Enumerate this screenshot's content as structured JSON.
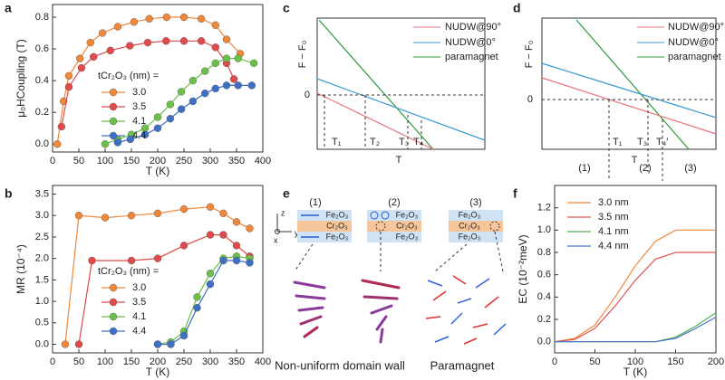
{
  "chart_data": [
    {
      "type": "line",
      "label": "a",
      "xlabel": "T (K)",
      "ylabel": "μ₀HCoupling (T)",
      "legend_title": "tCr₂O₃ (nm) =",
      "markers": true,
      "xlim": [
        0,
        400
      ],
      "xticks": [
        0,
        50,
        100,
        150,
        200,
        250,
        300,
        350,
        400
      ],
      "ylim": [
        -0.05,
        0.88
      ],
      "yticks": [
        {
          "value": 0,
          "label": "0.0"
        },
        {
          "value": 0.2,
          "label": "0.2"
        },
        {
          "value": 0.4,
          "label": "0.4"
        },
        {
          "value": 0.6,
          "label": "0.6"
        },
        {
          "value": 0.8,
          "label": "0.8"
        }
      ],
      "series": [
        {
          "name": "3.0",
          "color": "#f0883a",
          "x": [
            9,
            21,
            31,
            52,
            72,
            95,
            124,
            155,
            184,
            217,
            250,
            283,
            310,
            331,
            357
          ],
          "values": [
            0,
            0.27,
            0.43,
            0.54,
            0.64,
            0.7,
            0.74,
            0.77,
            0.79,
            0.8,
            0.8,
            0.79,
            0.75,
            0.66,
            0.57
          ]
        },
        {
          "name": "3.5",
          "color": "#e04a4a",
          "x": [
            17,
            31,
            55,
            78,
            110,
            147,
            181,
            216,
            250,
            283,
            310,
            331,
            345
          ],
          "values": [
            0.11,
            0.36,
            0.48,
            0.55,
            0.59,
            0.62,
            0.64,
            0.65,
            0.65,
            0.65,
            0.61,
            0.51,
            0.41
          ]
        },
        {
          "name": "4.1",
          "color": "#6cc04a",
          "x": [
            100,
            124,
            150,
            176,
            200,
            224,
            245,
            267,
            290,
            310,
            331,
            353,
            383
          ],
          "values": [
            0,
            0.03,
            0.06,
            0.1,
            0.17,
            0.25,
            0.33,
            0.4,
            0.46,
            0.51,
            0.54,
            0.54,
            0.51
          ]
        },
        {
          "name": "4.4",
          "color": "#3f6fc4",
          "x": [
            124,
            148,
            176,
            200,
            224,
            245,
            267,
            290,
            310,
            331,
            353,
            379
          ],
          "values": [
            0.01,
            0.03,
            0.06,
            0.1,
            0.16,
            0.22,
            0.27,
            0.32,
            0.35,
            0.37,
            0.37,
            0.37
          ]
        }
      ]
    },
    {
      "type": "line",
      "label": "b",
      "xlabel": "T (K)",
      "ylabel": "MR (10⁻⁴)",
      "legend_title": "tCr₂O₃ (nm) =",
      "markers": true,
      "xlim": [
        0,
        400
      ],
      "xticks": [
        0,
        50,
        100,
        150,
        200,
        250,
        300,
        350,
        400
      ],
      "ylim": [
        -0.2,
        3.7
      ],
      "yticks": [
        {
          "value": 0,
          "label": "0.0"
        },
        {
          "value": 0.5,
          "label": "0.5"
        },
        {
          "value": 1,
          "label": "1.0"
        },
        {
          "value": 1.5,
          "label": "1.5"
        },
        {
          "value": 2,
          "label": "2.0"
        },
        {
          "value": 2.5,
          "label": "2.5"
        },
        {
          "value": 3,
          "label": "3.0"
        },
        {
          "value": 3.5,
          "label": "3.5"
        }
      ],
      "series": [
        {
          "name": "3.0",
          "color": "#f0883a",
          "x": [
            24,
            50,
            100,
            150,
            200,
            250,
            300,
            325,
            350,
            375
          ],
          "values": [
            0,
            3.0,
            2.95,
            3.0,
            3.05,
            3.15,
            3.2,
            3.05,
            2.85,
            2.7
          ]
        },
        {
          "name": "3.5",
          "color": "#e04a4a",
          "x": [
            50,
            75,
            150,
            200,
            250,
            300,
            325,
            350,
            375
          ],
          "values": [
            0,
            1.95,
            1.95,
            2.0,
            2.3,
            2.55,
            2.55,
            2.3,
            2.05
          ]
        },
        {
          "name": "4.1",
          "color": "#6cc04a",
          "x": [
            200,
            225,
            250,
            275,
            300,
            325,
            350,
            375
          ],
          "values": [
            0,
            0.05,
            0.3,
            1.1,
            1.65,
            2.0,
            2.05,
            2.0
          ]
        },
        {
          "name": "4.4",
          "color": "#3f6fc4",
          "x": [
            200,
            225,
            250,
            275,
            300,
            325,
            350,
            375
          ],
          "values": [
            0,
            0,
            0.2,
            0.85,
            1.4,
            1.95,
            1.95,
            1.9
          ]
        }
      ]
    },
    {
      "type": "line",
      "label": "f",
      "xlabel": "T (K)",
      "ylabel": "EC (10⁻²meV)",
      "markers": false,
      "xlim": [
        0,
        200
      ],
      "xticks": [
        0,
        50,
        100,
        150,
        200
      ],
      "ylim": [
        -0.1,
        1.4
      ],
      "yticks": [
        {
          "value": 0,
          "label": "0.0"
        },
        {
          "value": 0.2,
          "label": "0.2"
        },
        {
          "value": 0.4,
          "label": "0.4"
        },
        {
          "value": 0.6,
          "label": "0.6"
        },
        {
          "value": 0.8,
          "label": "0.8"
        },
        {
          "value": 1,
          "label": "1.0"
        },
        {
          "value": 1.2,
          "label": "1.2"
        }
      ],
      "series": [
        {
          "name": "3.0 nm",
          "color": "#f0883a",
          "x": [
            0,
            25,
            50,
            75,
            100,
            125,
            150,
            175,
            200
          ],
          "values": [
            0,
            0.03,
            0.15,
            0.4,
            0.68,
            0.9,
            1.0,
            1.0,
            1.0
          ]
        },
        {
          "name": "3.5 nm",
          "color": "#e05555",
          "x": [
            0,
            25,
            50,
            75,
            100,
            125,
            150,
            175,
            200
          ],
          "values": [
            0,
            0.02,
            0.12,
            0.32,
            0.55,
            0.74,
            0.8,
            0.8,
            0.8
          ]
        },
        {
          "name": "4.1 nm",
          "color": "#50b050",
          "x": [
            0,
            25,
            50,
            75,
            100,
            125,
            150,
            175,
            200
          ],
          "values": [
            0,
            0,
            0,
            0,
            0,
            0,
            0.04,
            0.14,
            0.26
          ]
        },
        {
          "name": "4.4 nm",
          "color": "#5070d0",
          "x": [
            0,
            25,
            50,
            75,
            100,
            125,
            150,
            175,
            200
          ],
          "values": [
            0,
            0,
            0,
            0,
            0,
            0,
            0.03,
            0.12,
            0.22
          ]
        }
      ]
    }
  ],
  "diagrams": {
    "c": {
      "label": "c",
      "ylabel": "F − F₀",
      "xlabel": "T",
      "zero": "0",
      "t_labels": [
        "T₁",
        "T₂",
        "T₃",
        "T₄"
      ],
      "legend": [
        "NUDW@90°",
        "NUDW@0°",
        "paramagnet"
      ]
    },
    "d": {
      "label": "d",
      "ylabel": "F − F₀",
      "xlabel": "T",
      "zero": "0",
      "t_labels": [
        "T₁",
        "T₃′",
        "T₄′"
      ],
      "regions": [
        "(1)",
        "(2)",
        "(3)"
      ],
      "legend": [
        "NUDW@90°",
        "NUDW@0°",
        "paramagnet"
      ]
    },
    "e": {
      "label": "e",
      "regions": [
        "(1)",
        "(2)",
        "(3)"
      ],
      "layers": [
        [
          "Fe₂O₃",
          "Cr₂O₃",
          "Fe₂O₃"
        ],
        [
          "Fe₂O₃",
          "Cr₂O₃",
          "Fe₂O₃"
        ],
        [
          "Fe₂O₃",
          "Cr₂O₃",
          "Fe₂O₃"
        ]
      ],
      "axes": [
        "z",
        "x",
        "y"
      ],
      "captions": [
        "Non-uniform domain wall",
        "Paramagnet"
      ]
    }
  }
}
